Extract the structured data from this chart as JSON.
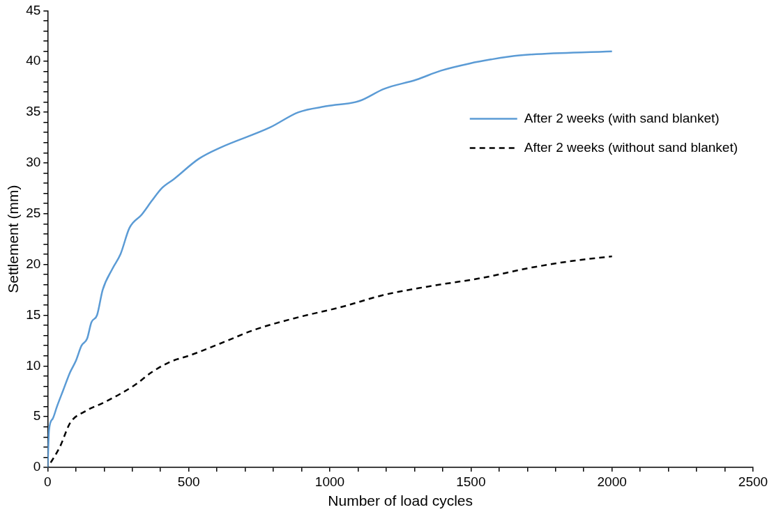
{
  "chart_data": {
    "type": "line",
    "xlabel": "Number of load cycles",
    "ylabel": "Settlement (mm)",
    "xlim": [
      0,
      2500
    ],
    "ylim": [
      0,
      45
    ],
    "xticks": [
      0,
      {
        "value": 100,
        "label": null
      },
      {
        "value": 200,
        "label": null
      },
      {
        "value": 300,
        "label": null
      },
      {
        "value": 400,
        "label": null
      },
      500,
      {
        "value": 600,
        "label": null
      },
      {
        "value": 700,
        "label": null
      },
      {
        "value": 800,
        "label": null
      },
      {
        "value": 900,
        "label": null
      },
      1000,
      {
        "value": 1100,
        "label": null
      },
      {
        "value": 1200,
        "label": null
      },
      {
        "value": 1300,
        "label": null
      },
      {
        "value": 1400,
        "label": null
      },
      1500,
      {
        "value": 1600,
        "label": null
      },
      {
        "value": 1700,
        "label": null
      },
      {
        "value": 1800,
        "label": null
      },
      {
        "value": 1900,
        "label": null
      },
      2000,
      {
        "value": 2100,
        "label": null
      },
      {
        "value": 2200,
        "label": null
      },
      {
        "value": 2300,
        "label": null
      },
      {
        "value": 2400,
        "label": null
      },
      2500
    ],
    "yticks": [
      0,
      {
        "value": 1,
        "label": null
      },
      {
        "value": 2,
        "label": null
      },
      {
        "value": 3,
        "label": null
      },
      {
        "value": 4,
        "label": null
      },
      5,
      {
        "value": 6,
        "label": null
      },
      {
        "value": 7,
        "label": null
      },
      {
        "value": 8,
        "label": null
      },
      {
        "value": 9,
        "label": null
      },
      10,
      {
        "value": 11,
        "label": null
      },
      {
        "value": 12,
        "label": null
      },
      {
        "value": 13,
        "label": null
      },
      {
        "value": 14,
        "label": null
      },
      15,
      {
        "value": 16,
        "label": null
      },
      {
        "value": 17,
        "label": null
      },
      {
        "value": 18,
        "label": null
      },
      {
        "value": 19,
        "label": null
      },
      20,
      {
        "value": 21,
        "label": null
      },
      {
        "value": 22,
        "label": null
      },
      {
        "value": 23,
        "label": null
      },
      {
        "value": 24,
        "label": null
      },
      25,
      {
        "value": 26,
        "label": null
      },
      {
        "value": 27,
        "label": null
      },
      {
        "value": 28,
        "label": null
      },
      {
        "value": 29,
        "label": null
      },
      30,
      {
        "value": 31,
        "label": null
      },
      {
        "value": 32,
        "label": null
      },
      {
        "value": 33,
        "label": null
      },
      {
        "value": 34,
        "label": null
      },
      35,
      {
        "value": 36,
        "label": null
      },
      {
        "value": 37,
        "label": null
      },
      {
        "value": 38,
        "label": null
      },
      {
        "value": 39,
        "label": null
      },
      40,
      {
        "value": 41,
        "label": null
      },
      {
        "value": 42,
        "label": null
      },
      {
        "value": 43,
        "label": null
      },
      {
        "value": 44,
        "label": null
      },
      45
    ],
    "grid": false,
    "legend": "top right",
    "marker": "none",
    "series": [
      {
        "name": "After 2 weeks (with sand blanket)",
        "color": "#5b9bd5",
        "line_style": "solid",
        "x": [
          0,
          5,
          18,
          33,
          55,
          80,
          100,
          120,
          140,
          155,
          175,
          195,
          230,
          258,
          290,
          333,
          370,
          404,
          447,
          535,
          611,
          788,
          889,
          990,
          1104,
          1192,
          1306,
          1394,
          1495,
          1571,
          1672,
          2000
        ],
        "values": [
          0,
          3.7,
          4.8,
          6.0,
          7.6,
          9.4,
          10.5,
          12.0,
          12.7,
          14.3,
          15.0,
          17.5,
          19.6,
          21.0,
          23.6,
          24.9,
          26.3,
          27.5,
          28.4,
          30.4,
          31.5,
          33.5,
          35.0,
          35.6,
          36.1,
          37.3,
          38.2,
          39.1,
          39.8,
          40.2,
          40.6,
          41.0
        ]
      },
      {
        "name": "After 2 weeks (without sand blanket)",
        "color": "#000000",
        "line_style": "dashed",
        "x": [
          0,
          43,
          80,
          131,
          207,
          308,
          370,
          434,
          510,
          611,
          737,
          889,
          1040,
          1192,
          1343,
          1545,
          1697,
          1848,
          2000
        ],
        "values": [
          0,
          2.0,
          4.4,
          5.5,
          6.5,
          8.1,
          9.4,
          10.4,
          11.1,
          12.2,
          13.6,
          14.8,
          15.8,
          17.0,
          17.8,
          18.7,
          19.6,
          20.3,
          20.8
        ]
      }
    ]
  }
}
